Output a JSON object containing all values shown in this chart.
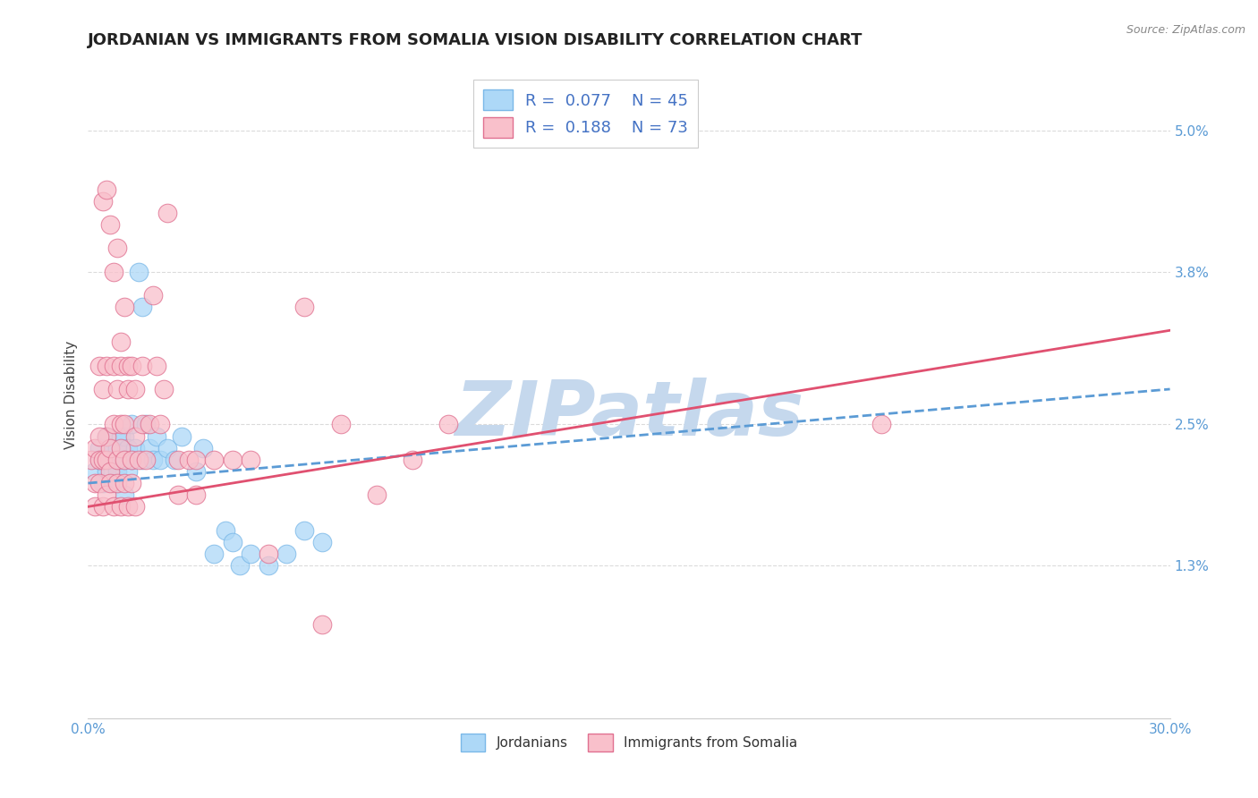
{
  "title": "JORDANIAN VS IMMIGRANTS FROM SOMALIA VISION DISABILITY CORRELATION CHART",
  "source": "Source: ZipAtlas.com",
  "ylabel": "Vision Disability",
  "watermark": "ZIPatlas",
  "xlim": [
    0.0,
    0.3
  ],
  "ylim": [
    0.0,
    0.055
  ],
  "yticks": [
    0.013,
    0.025,
    0.038,
    0.05
  ],
  "ytick_labels": [
    "1.3%",
    "2.5%",
    "3.8%",
    "5.0%"
  ],
  "xtick_positions": [
    0.0,
    0.3
  ],
  "xtick_labels": [
    "0.0%",
    "30.0%"
  ],
  "series": [
    {
      "name": "Jordanians",
      "R": 0.077,
      "N": 45,
      "color": "#add8f7",
      "edge_color": "#7ab8e8",
      "line_color": "#5b9bd5",
      "line_style": "--",
      "x": [
        0.002,
        0.003,
        0.003,
        0.004,
        0.004,
        0.005,
        0.005,
        0.006,
        0.006,
        0.007,
        0.007,
        0.008,
        0.008,
        0.009,
        0.009,
        0.01,
        0.01,
        0.01,
        0.011,
        0.011,
        0.012,
        0.012,
        0.013,
        0.014,
        0.015,
        0.015,
        0.016,
        0.017,
        0.018,
        0.019,
        0.02,
        0.022,
        0.024,
        0.026,
        0.03,
        0.032,
        0.035,
        0.038,
        0.04,
        0.042,
        0.045,
        0.05,
        0.055,
        0.06,
        0.065
      ],
      "y": [
        0.021,
        0.022,
        0.023,
        0.02,
        0.022,
        0.021,
        0.024,
        0.022,
        0.023,
        0.02,
        0.022,
        0.021,
        0.023,
        0.022,
        0.024,
        0.019,
        0.022,
        0.024,
        0.021,
        0.023,
        0.022,
        0.025,
        0.023,
        0.038,
        0.035,
        0.022,
        0.025,
        0.023,
        0.022,
        0.024,
        0.022,
        0.023,
        0.022,
        0.024,
        0.021,
        0.023,
        0.014,
        0.016,
        0.015,
        0.013,
        0.014,
        0.013,
        0.014,
        0.016,
        0.015
      ]
    },
    {
      "name": "Immigrants from Somalia",
      "R": 0.188,
      "N": 73,
      "color": "#f9c0cb",
      "edge_color": "#e07090",
      "line_color": "#e05070",
      "line_style": "-",
      "x": [
        0.001,
        0.002,
        0.002,
        0.003,
        0.003,
        0.004,
        0.004,
        0.005,
        0.005,
        0.005,
        0.006,
        0.006,
        0.007,
        0.007,
        0.008,
        0.008,
        0.009,
        0.009,
        0.009,
        0.01,
        0.01,
        0.011,
        0.011,
        0.012,
        0.012,
        0.013,
        0.013,
        0.014,
        0.015,
        0.015,
        0.016,
        0.017,
        0.018,
        0.019,
        0.02,
        0.021,
        0.022,
        0.025,
        0.028,
        0.03,
        0.035,
        0.04,
        0.045,
        0.05,
        0.06,
        0.065,
        0.07,
        0.08,
        0.09,
        0.1,
        0.002,
        0.003,
        0.004,
        0.005,
        0.006,
        0.007,
        0.008,
        0.009,
        0.01,
        0.011,
        0.012,
        0.013,
        0.003,
        0.004,
        0.005,
        0.006,
        0.007,
        0.008,
        0.009,
        0.01,
        0.22,
        0.025,
        0.03
      ],
      "y": [
        0.022,
        0.023,
        0.02,
        0.022,
        0.03,
        0.022,
        0.028,
        0.024,
        0.022,
        0.03,
        0.021,
        0.023,
        0.03,
        0.025,
        0.022,
        0.028,
        0.023,
        0.025,
        0.03,
        0.022,
        0.025,
        0.03,
        0.028,
        0.022,
        0.03,
        0.024,
        0.028,
        0.022,
        0.025,
        0.03,
        0.022,
        0.025,
        0.036,
        0.03,
        0.025,
        0.028,
        0.043,
        0.022,
        0.022,
        0.022,
        0.022,
        0.022,
        0.022,
        0.014,
        0.035,
        0.008,
        0.025,
        0.019,
        0.022,
        0.025,
        0.018,
        0.02,
        0.018,
        0.019,
        0.02,
        0.018,
        0.02,
        0.018,
        0.02,
        0.018,
        0.02,
        0.018,
        0.024,
        0.044,
        0.045,
        0.042,
        0.038,
        0.04,
        0.032,
        0.035,
        0.025,
        0.019,
        0.019
      ]
    }
  ],
  "trend_lines": [
    {
      "x_start": 0.0,
      "y_start": 0.02,
      "x_end": 0.3,
      "y_end": 0.028
    },
    {
      "x_start": 0.0,
      "y_start": 0.018,
      "x_end": 0.3,
      "y_end": 0.033
    }
  ],
  "background_color": "#ffffff",
  "grid_color": "#cccccc",
  "title_fontsize": 13,
  "axis_label_fontsize": 11,
  "tick_label_fontsize": 11,
  "legend_fontsize": 13,
  "watermark_color": "#c5d8ed",
  "watermark_fontsize": 62
}
